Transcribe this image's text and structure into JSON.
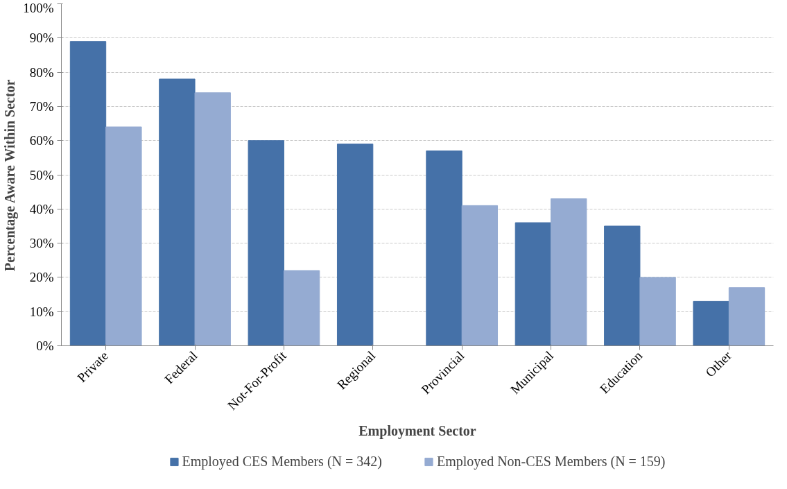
{
  "chart_data": {
    "type": "bar",
    "xlabel": "Employment Sector",
    "ylabel": "Percentage Aware Within Sector",
    "categories": [
      "Private",
      "Federal",
      "Not-For-Profit",
      "Regional",
      "Provincial",
      "Municipal",
      "Education",
      "Other"
    ],
    "series": [
      {
        "name": "Employed CES Members (N = 342)",
        "color": "#4571a8",
        "values": [
          89,
          78,
          60,
          59,
          57,
          36,
          35,
          13
        ]
      },
      {
        "name": "Employed Non-CES Members (N = 159)",
        "color": "#95abd2",
        "values": [
          64,
          74,
          22,
          0,
          41,
          43,
          20,
          17
        ]
      }
    ],
    "ylim": [
      0,
      100
    ],
    "yticks": [
      {
        "value": 0,
        "label": "0%"
      },
      {
        "value": 10,
        "label": "10%"
      },
      {
        "value": 20,
        "label": "20%"
      },
      {
        "value": 30,
        "label": "30%"
      },
      {
        "value": 40,
        "label": "40%"
      },
      {
        "value": 50,
        "label": "50%"
      },
      {
        "value": 60,
        "label": "60%"
      },
      {
        "value": 70,
        "label": "70%"
      },
      {
        "value": 80,
        "label": "80%"
      },
      {
        "value": 90,
        "label": "90%"
      },
      {
        "value": 100,
        "label": "100%"
      }
    ],
    "grid": "y",
    "legend": "bottom"
  }
}
